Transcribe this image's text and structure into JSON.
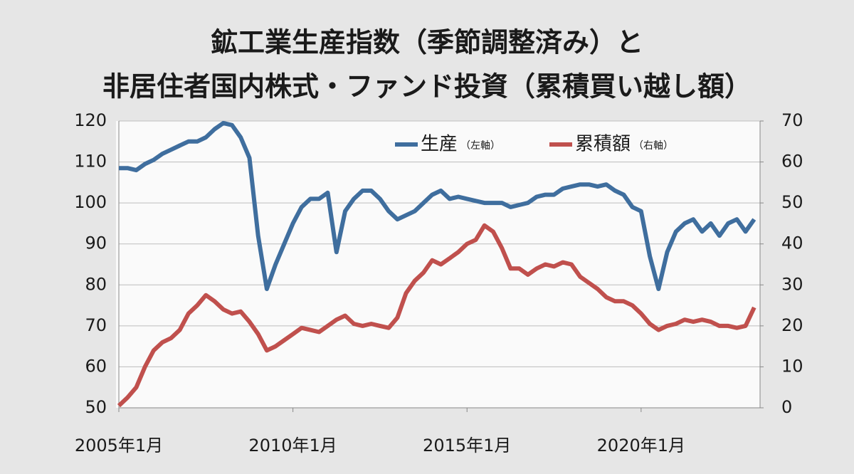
{
  "chart_data": {
    "type": "line",
    "title": [
      "鉱工業生産指数（季節調整済み）と",
      "非居住者国内株式・ファンド投資（累積買い越し額）"
    ],
    "x": [
      "2005-01",
      "2005-04",
      "2005-07",
      "2005-10",
      "2006-01",
      "2006-04",
      "2006-07",
      "2006-10",
      "2007-01",
      "2007-04",
      "2007-07",
      "2007-10",
      "2008-01",
      "2008-04",
      "2008-07",
      "2008-10",
      "2009-01",
      "2009-04",
      "2009-07",
      "2009-10",
      "2010-01",
      "2010-04",
      "2010-07",
      "2010-10",
      "2011-01",
      "2011-04",
      "2011-07",
      "2011-10",
      "2012-01",
      "2012-04",
      "2012-07",
      "2012-10",
      "2013-01",
      "2013-04",
      "2013-07",
      "2013-10",
      "2014-01",
      "2014-04",
      "2014-07",
      "2014-10",
      "2015-01",
      "2015-04",
      "2015-07",
      "2015-10",
      "2016-01",
      "2016-04",
      "2016-07",
      "2016-10",
      "2017-01",
      "2017-04",
      "2017-07",
      "2017-10",
      "2018-01",
      "2018-04",
      "2018-07",
      "2018-10",
      "2019-01",
      "2019-04",
      "2019-07",
      "2019-10",
      "2020-01",
      "2020-04",
      "2020-07",
      "2020-10",
      "2021-01",
      "2021-04",
      "2021-07",
      "2021-10",
      "2022-01",
      "2022-04",
      "2022-07",
      "2022-10",
      "2023-01",
      "2023-04"
    ],
    "series": [
      {
        "name": "生産",
        "axis_note": "（左軸）",
        "color": "#3f6e9e",
        "values": [
          108.5,
          108.5,
          108,
          109.5,
          110.5,
          112,
          113,
          114,
          115,
          115,
          116,
          118,
          119.5,
          119,
          116,
          111,
          92,
          79,
          85,
          90,
          95,
          99,
          101,
          101,
          102.5,
          88,
          98,
          101,
          103,
          103,
          101,
          98,
          96,
          97,
          98,
          100,
          102,
          103,
          101,
          101.5,
          101,
          100.5,
          100,
          100,
          100,
          99,
          99.5,
          100,
          101.5,
          102,
          102,
          103.5,
          104,
          104.5,
          104.5,
          104,
          104.5,
          103,
          102,
          99,
          98,
          87,
          79,
          88,
          93,
          95,
          96,
          93,
          95,
          92,
          95,
          96,
          93,
          96
        ]
      },
      {
        "name": "累積額",
        "axis_note": "（右軸）",
        "axis": "y2",
        "color": "#c0504d",
        "values": [
          0.5,
          2.5,
          5,
          10,
          14,
          16,
          17,
          19,
          23,
          25,
          27.5,
          26,
          24,
          23,
          23.5,
          21,
          18,
          14,
          15,
          16.5,
          18,
          19.5,
          19,
          18.5,
          20,
          21.5,
          22.5,
          20.5,
          20,
          20.5,
          20,
          19.5,
          22,
          28,
          31,
          33,
          36,
          35,
          36.5,
          38,
          40,
          41,
          44.5,
          43,
          39,
          34,
          34,
          32.5,
          34,
          35,
          34.5,
          35.5,
          35,
          32,
          30.5,
          29,
          27,
          26,
          26,
          25,
          23,
          20.5,
          19,
          20,
          20.5,
          21.5,
          21,
          21.5,
          21,
          20,
          20,
          19.5,
          20,
          24.5
        ]
      }
    ],
    "xlim": [
      "2005-01",
      "2023-06"
    ],
    "xticks": [
      {
        "value": "2005-01",
        "label": "2005年1月"
      },
      {
        "value": "2010-01",
        "label": "2010年1月"
      },
      {
        "value": "2015-01",
        "label": "2015年1月"
      },
      {
        "value": "2020-01",
        "label": "2020年1月"
      }
    ],
    "ylim": [
      50,
      120
    ],
    "yticks": [
      50,
      60,
      70,
      80,
      90,
      100,
      110,
      120
    ],
    "y2lim": [
      0,
      70
    ],
    "y2ticks": [
      0,
      10,
      20,
      30,
      40,
      50,
      60,
      70
    ],
    "grid": true
  }
}
